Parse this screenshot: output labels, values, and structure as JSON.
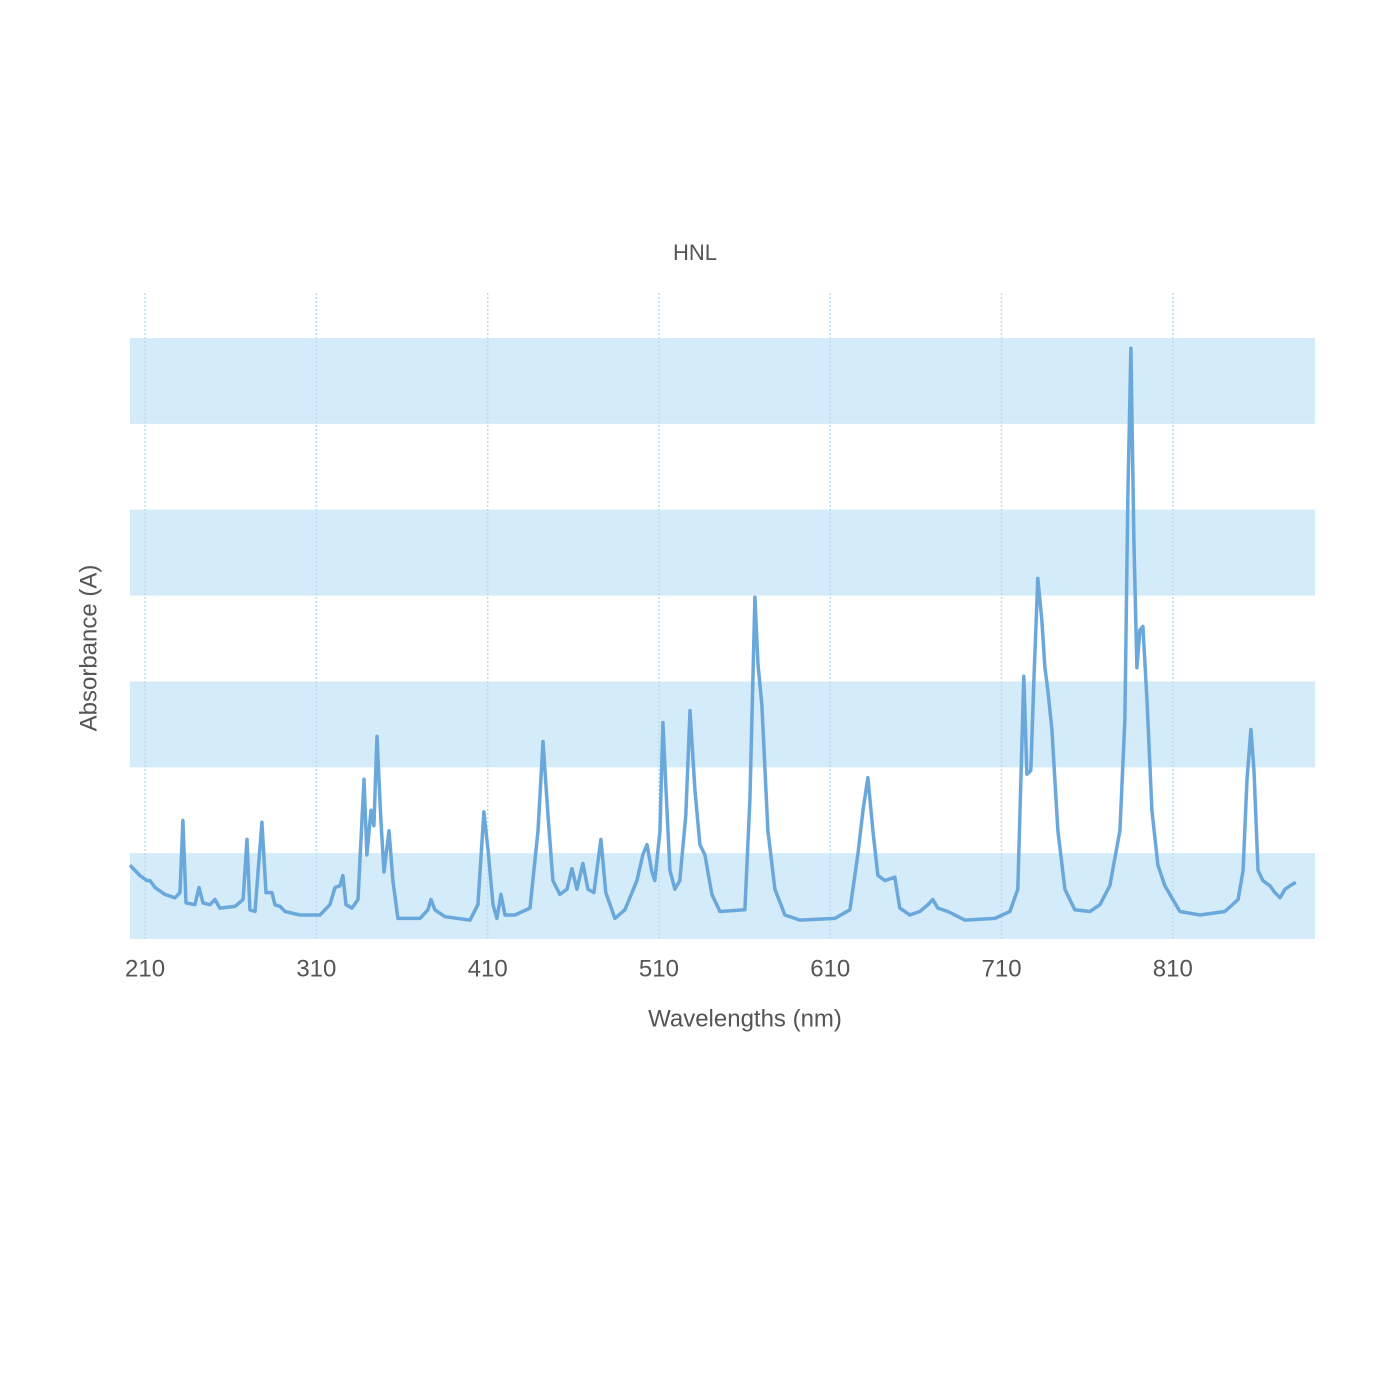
{
  "chart_data": {
    "type": "line",
    "title": "HNL",
    "x_label": "Wavelengths (nm)",
    "y_label": "Absorbance (A)",
    "xlim": [
      201.2,
      893
    ],
    "xticks": [
      210,
      310,
      410,
      510,
      610,
      710,
      810
    ],
    "ylim": [
      0,
      3.5
    ],
    "bands": [
      [
        0,
        0.5
      ],
      [
        1,
        1.5
      ],
      [
        2,
        2.5
      ],
      [
        3,
        3.5
      ]
    ],
    "band_color": "#d4ebf9",
    "grid": true,
    "grid_color": "#b9dcee",
    "series": [
      {
        "color": "#6aa8dc",
        "x": [
          201.2,
          207.0,
          211.1,
          212.9,
          215.8,
          221.6,
          227.5,
          230.4,
          232.1,
          233.9,
          239.1,
          241.5,
          243.8,
          247.9,
          250.8,
          253.7,
          262.5,
          267.2,
          269.5,
          271.2,
          274.2,
          278.2,
          280.6,
          284.1,
          285.8,
          288.8,
          291.7,
          300.4,
          312.1,
          317.9,
          320.9,
          323.8,
          325.5,
          327.3,
          330.8,
          334.3,
          337.8,
          339.5,
          341.9,
          343.6,
          345.4,
          347.7,
          349.5,
          352.4,
          354.7,
          357.6,
          370.5,
          375.1,
          376.9,
          379.2,
          385.1,
          399.7,
          404.3,
          407.8,
          410.2,
          413.1,
          415.4,
          417.8,
          420.1,
          425.9,
          434.7,
          439.4,
          442.3,
          445.2,
          448.1,
          452.2,
          456.3,
          459.2,
          462.1,
          465.6,
          468.5,
          472.0,
          476.1,
          479.0,
          484.3,
          490.1,
          497.1,
          500.6,
          503.0,
          505.9,
          507.6,
          510.6,
          512.3,
          514.1,
          516.4,
          519.3,
          522.2,
          525.7,
          528.1,
          531.0,
          533.9,
          536.8,
          540.9,
          545.6,
          560.2,
          563.1,
          566.0,
          567.8,
          570.1,
          573.6,
          577.7,
          583.5,
          592.3,
          612.7,
          621.5,
          626.1,
          629.1,
          632.0,
          634.9,
          637.8,
          641.9,
          647.7,
          650.6,
          656.5,
          662.3,
          667.0,
          669.9,
          672.8,
          678.7,
          688.6,
          706.1,
          714.9,
          719.5,
          721.3,
          723.0,
          724.8,
          727.1,
          728.9,
          731.2,
          733.5,
          735.3,
          737.0,
          739.4,
          742.9,
          747.0,
          752.8,
          761.6,
          767.4,
          773.2,
          779.1,
          782.0,
          783.7,
          785.5,
          787.3,
          789.0,
          790.8,
          792.5,
          794.9,
          797.8,
          801.3,
          805.4,
          809.4,
          814.1,
          825.8,
          840.4,
          848.1,
          851.0,
          853.3,
          855.6,
          857.4,
          859.7,
          862.6,
          866.7,
          869.6,
          872.6,
          875.5,
          878.4,
          881.8
        ],
        "values": [
          0.43,
          0.37,
          0.34,
          0.34,
          0.3,
          0.26,
          0.24,
          0.27,
          0.69,
          0.21,
          0.2,
          0.3,
          0.21,
          0.2,
          0.23,
          0.18,
          0.19,
          0.23,
          0.58,
          0.17,
          0.16,
          0.68,
          0.27,
          0.27,
          0.2,
          0.19,
          0.16,
          0.14,
          0.14,
          0.2,
          0.3,
          0.31,
          0.37,
          0.2,
          0.18,
          0.23,
          0.93,
          0.49,
          0.75,
          0.66,
          1.18,
          0.69,
          0.39,
          0.63,
          0.34,
          0.12,
          0.12,
          0.17,
          0.23,
          0.17,
          0.13,
          0.11,
          0.2,
          0.74,
          0.52,
          0.2,
          0.12,
          0.26,
          0.14,
          0.14,
          0.18,
          0.63,
          1.15,
          0.72,
          0.34,
          0.26,
          0.29,
          0.41,
          0.29,
          0.44,
          0.29,
          0.27,
          0.58,
          0.27,
          0.12,
          0.17,
          0.34,
          0.49,
          0.55,
          0.39,
          0.34,
          0.63,
          1.26,
          0.87,
          0.4,
          0.29,
          0.34,
          0.72,
          1.33,
          0.87,
          0.55,
          0.49,
          0.26,
          0.16,
          0.17,
          0.81,
          1.99,
          1.6,
          1.36,
          0.63,
          0.29,
          0.14,
          0.11,
          0.12,
          0.17,
          0.49,
          0.75,
          0.94,
          0.63,
          0.37,
          0.34,
          0.36,
          0.18,
          0.14,
          0.16,
          0.2,
          0.23,
          0.18,
          0.16,
          0.11,
          0.12,
          0.16,
          0.29,
          0.93,
          1.53,
          0.96,
          0.98,
          1.51,
          2.1,
          1.86,
          1.58,
          1.45,
          1.22,
          0.63,
          0.29,
          0.17,
          0.16,
          0.2,
          0.31,
          0.63,
          1.28,
          2.56,
          3.44,
          2.32,
          1.58,
          1.8,
          1.82,
          1.39,
          0.75,
          0.43,
          0.31,
          0.24,
          0.16,
          0.14,
          0.16,
          0.23,
          0.4,
          0.93,
          1.22,
          0.98,
          0.4,
          0.34,
          0.31,
          0.27,
          0.24,
          0.29,
          0.31,
          0.33
        ]
      }
    ]
  }
}
